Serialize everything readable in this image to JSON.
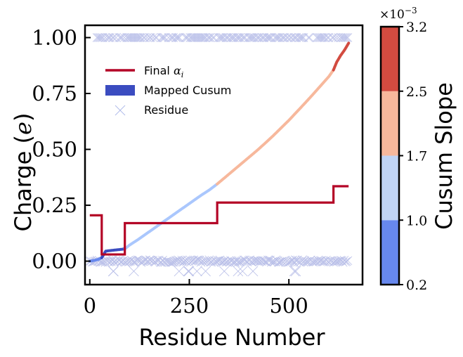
{
  "chart_data": {
    "type": "scatter",
    "xlabel": "Residue Number",
    "ylabel": "Charge (",
    "ylabel_var": "e",
    "ylabel_close": ")",
    "xlim": [
      -12,
      685
    ],
    "ylim": [
      -0.105,
      1.055
    ],
    "xticks": [
      0,
      250,
      500
    ],
    "yticks": [
      0.0,
      0.25,
      0.5,
      0.75,
      1.0
    ],
    "xtick_labels": [
      "0",
      "250",
      "500"
    ],
    "ytick_labels": [
      "0.00",
      "0.25",
      "0.50",
      "0.75",
      "1.00"
    ],
    "grid": false,
    "legend": {
      "placement": "upper-left",
      "entries": [
        {
          "label": "Final ",
          "math": "α",
          "sub": "i",
          "kind": "line",
          "color": "#b40426"
        },
        {
          "label": "Mapped Cusum",
          "kind": "patch",
          "color": "#3b4cc0"
        },
        {
          "label": "Residue",
          "kind": "marker",
          "color": "#8f9ee0"
        }
      ]
    },
    "final_alpha": {
      "name": "Final αi",
      "color": "#b40426",
      "steps": [
        {
          "x0": 0,
          "x1": 30,
          "y": 0.205
        },
        {
          "x0": 30,
          "x1": 88,
          "y": 0.03
        },
        {
          "x0": 88,
          "x1": 320,
          "y": 0.17
        },
        {
          "x0": 320,
          "x1": 612,
          "y": 0.262
        },
        {
          "x0": 612,
          "x1": 650,
          "y": 0.335
        }
      ]
    },
    "mapped_cusum": {
      "points": [
        [
          0,
          0.0
        ],
        [
          10,
          0.003
        ],
        [
          20,
          0.007
        ],
        [
          30,
          0.015
        ],
        [
          40,
          0.045
        ],
        [
          50,
          0.047
        ],
        [
          60,
          0.049
        ],
        [
          70,
          0.051
        ],
        [
          80,
          0.053
        ],
        [
          88,
          0.055
        ],
        [
          100,
          0.072
        ],
        [
          120,
          0.095
        ],
        [
          140,
          0.12
        ],
        [
          160,
          0.145
        ],
        [
          180,
          0.17
        ],
        [
          200,
          0.195
        ],
        [
          220,
          0.22
        ],
        [
          240,
          0.245
        ],
        [
          260,
          0.27
        ],
        [
          280,
          0.295
        ],
        [
          300,
          0.318
        ],
        [
          320,
          0.345
        ],
        [
          340,
          0.375
        ],
        [
          360,
          0.405
        ],
        [
          380,
          0.435
        ],
        [
          400,
          0.465
        ],
        [
          420,
          0.495
        ],
        [
          440,
          0.527
        ],
        [
          460,
          0.56
        ],
        [
          480,
          0.595
        ],
        [
          500,
          0.63
        ],
        [
          520,
          0.668
        ],
        [
          540,
          0.706
        ],
        [
          560,
          0.745
        ],
        [
          580,
          0.785
        ],
        [
          600,
          0.825
        ],
        [
          612,
          0.855
        ],
        [
          620,
          0.89
        ],
        [
          630,
          0.92
        ],
        [
          640,
          0.945
        ],
        [
          650,
          0.975
        ]
      ],
      "segment_colors": [
        {
          "x0": 0,
          "x1": 30,
          "color": "#6788ee"
        },
        {
          "x0": 30,
          "x1": 88,
          "color": "#3b4cc0"
        },
        {
          "x0": 88,
          "x1": 320,
          "color": "#aac7fd"
        },
        {
          "x0": 320,
          "x1": 612,
          "color": "#f7b89c"
        },
        {
          "x0": 612,
          "x1": 650,
          "color": "#d24b40"
        }
      ]
    },
    "residues": {
      "marker": "x",
      "color": "#3b4cc0",
      "charged_y": 1.0,
      "neutral_y": 0.0,
      "x_range": [
        0,
        650
      ],
      "charged_from": 15
    },
    "colorbar": {
      "label": "Cusum Slope",
      "exponent_label": "×10",
      "exponent_power": "−3",
      "boundaries": [
        0.2,
        1.0,
        1.7,
        2.5,
        3.2
      ],
      "tick_labels": [
        "0.2",
        "1.0",
        "1.7",
        "2.5",
        "3.2"
      ],
      "colors": [
        "#6788ee",
        "#c0d4f5",
        "#f7b89c",
        "#d24b40"
      ]
    }
  }
}
